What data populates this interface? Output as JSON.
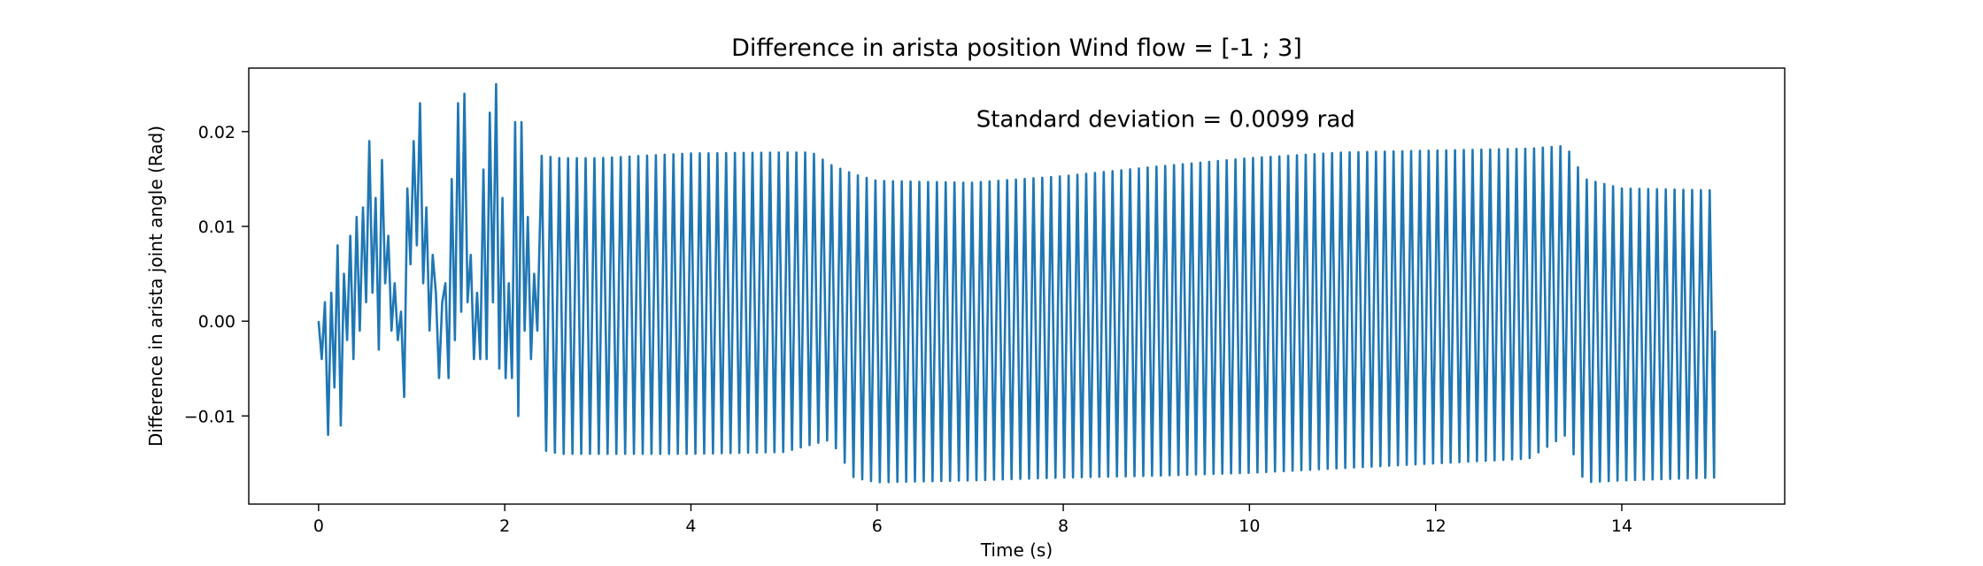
{
  "chart_data": {
    "type": "line",
    "title": "Difference in arista position Wind flow = [-1 ; 3]",
    "xlabel": "Time (s)",
    "ylabel": "Difference in arista joint angle (Rad)",
    "annotation": "Standard deviation = 0.0099 rad",
    "xlim": [
      -0.75,
      15.75
    ],
    "ylim": [
      -0.0193,
      0.0267
    ],
    "x_ticks": [
      0,
      2,
      4,
      6,
      8,
      10,
      12,
      14
    ],
    "x_tick_labels": [
      "0",
      "2",
      "4",
      "6",
      "8",
      "10",
      "12",
      "14"
    ],
    "y_ticks": [
      -0.01,
      0.0,
      0.01,
      0.02
    ],
    "y_tick_labels": [
      "−0.01",
      "0.00",
      "0.01",
      "0.02"
    ],
    "grid": false,
    "series": [
      {
        "color": "#1f77b4",
        "x_start": 0.0,
        "x_end": 15.0,
        "irregular_start_values": [
          0.0,
          -0.004,
          0.002,
          -0.012,
          0.003,
          -0.007,
          0.008,
          -0.011,
          0.005,
          -0.002,
          0.009,
          -0.004,
          0.011,
          -0.001,
          0.012,
          0.002,
          0.019,
          0.003,
          0.013,
          -0.003,
          0.017,
          0.004,
          0.009,
          -0.001,
          0.004,
          -0.002,
          0.001,
          -0.008,
          0.014,
          0.006,
          0.019,
          0.008,
          0.023,
          0.004,
          0.012,
          -0.001,
          0.007,
          0.003,
          -0.006,
          0.002,
          0.004,
          -0.006,
          0.015,
          -0.002,
          0.023,
          0.001,
          0.024,
          0.002,
          0.007,
          -0.004,
          0.003,
          -0.004,
          0.016,
          -0.004,
          0.022,
          0.002,
          0.025,
          -0.005,
          0.013,
          -0.006,
          0.004,
          -0.006,
          0.021,
          -0.01,
          0.021,
          -0.001,
          0.011,
          -0.004,
          0.005,
          -0.001
        ],
        "irregular_end_time": 2.35,
        "oscillation_frequency_hz": 10.6,
        "envelope_times": [
          2.35,
          2.6,
          3.0,
          4.0,
          5.0,
          5.3,
          5.5,
          5.75,
          6.0,
          7.0,
          8.0,
          9.0,
          10.0,
          11.0,
          12.0,
          13.0,
          13.4,
          13.6,
          14.0,
          15.0
        ],
        "envelope_max": [
          0.0175,
          0.0172,
          0.0172,
          0.0177,
          0.0178,
          0.0178,
          0.0165,
          0.0155,
          0.0148,
          0.0146,
          0.0153,
          0.0163,
          0.0172,
          0.0178,
          0.018,
          0.0182,
          0.0185,
          0.015,
          0.014,
          0.0138
        ],
        "envelope_min": [
          -0.0135,
          -0.014,
          -0.014,
          -0.014,
          -0.0138,
          -0.013,
          -0.0125,
          -0.0165,
          -0.017,
          -0.0168,
          -0.0165,
          -0.0163,
          -0.016,
          -0.0155,
          -0.015,
          -0.0145,
          -0.012,
          -0.017,
          -0.0168,
          -0.0165
        ],
        "final_value": -0.001
      }
    ]
  }
}
